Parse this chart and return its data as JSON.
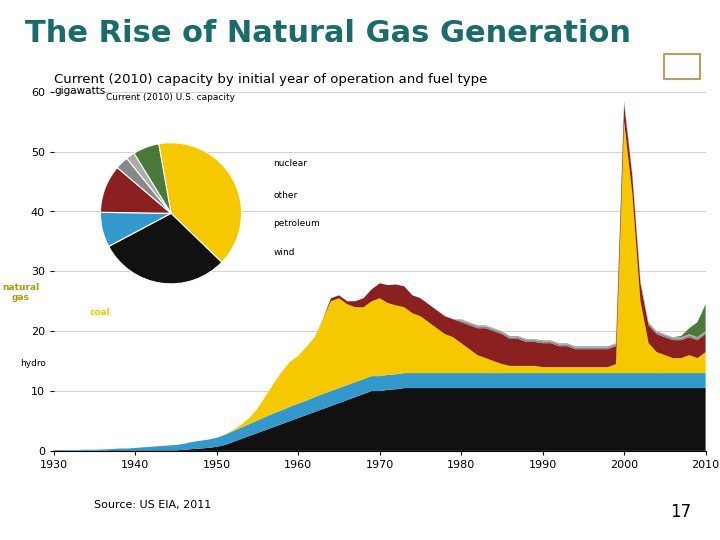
{
  "title": "The Rise of Natural Gas Generation",
  "title_color": "#1a6b6b",
  "title_fontsize": 22,
  "separator_color": "#1a3060",
  "source_text": "Source: US EIA, 2011",
  "page_number": "17",
  "chart_title": "Current (2010) capacity by initial year of operation and fuel type",
  "chart_ylabel": "gigawatts",
  "chart_ylim": [
    0,
    60
  ],
  "chart_yticks": [
    0,
    10,
    20,
    30,
    40,
    50,
    60
  ],
  "chart_xlim": [
    1930,
    2010
  ],
  "chart_xticks": [
    1930,
    1940,
    1950,
    1960,
    1970,
    1980,
    1990,
    2000,
    2010
  ],
  "years": [
    1930,
    1931,
    1932,
    1933,
    1934,
    1935,
    1936,
    1937,
    1938,
    1939,
    1940,
    1941,
    1942,
    1943,
    1944,
    1945,
    1946,
    1947,
    1948,
    1949,
    1950,
    1951,
    1952,
    1953,
    1954,
    1955,
    1956,
    1957,
    1958,
    1959,
    1960,
    1961,
    1962,
    1963,
    1964,
    1965,
    1966,
    1967,
    1968,
    1969,
    1970,
    1971,
    1972,
    1973,
    1974,
    1975,
    1976,
    1977,
    1978,
    1979,
    1980,
    1981,
    1982,
    1983,
    1984,
    1985,
    1986,
    1987,
    1988,
    1989,
    1990,
    1991,
    1992,
    1993,
    1994,
    1995,
    1996,
    1997,
    1998,
    1999,
    2000,
    2001,
    2002,
    2003,
    2004,
    2005,
    2006,
    2007,
    2008,
    2009,
    2010
  ],
  "coal": [
    0.05,
    0.05,
    0.05,
    0.05,
    0.05,
    0.05,
    0.05,
    0.1,
    0.1,
    0.1,
    0.1,
    0.1,
    0.1,
    0.1,
    0.1,
    0.1,
    0.2,
    0.3,
    0.4,
    0.5,
    0.7,
    1.0,
    1.5,
    2.0,
    2.5,
    3.0,
    3.5,
    4.0,
    4.5,
    5.0,
    5.5,
    6.0,
    6.5,
    7.0,
    7.5,
    8.0,
    8.5,
    9.0,
    9.5,
    10.0,
    10.0,
    10.2,
    10.3,
    10.5,
    10.5,
    10.5,
    10.5,
    10.5,
    10.5,
    10.5,
    10.5,
    10.5,
    10.5,
    10.5,
    10.5,
    10.5,
    10.5,
    10.5,
    10.5,
    10.5,
    10.5,
    10.5,
    10.5,
    10.5,
    10.5,
    10.5,
    10.5,
    10.5,
    10.5,
    10.5,
    10.5,
    10.5,
    10.5,
    10.5,
    10.5,
    10.5,
    10.5,
    10.5,
    10.5,
    10.5,
    10.5
  ],
  "coal_color": "#111111",
  "hydro": [
    0.1,
    0.1,
    0.1,
    0.1,
    0.15,
    0.15,
    0.2,
    0.2,
    0.3,
    0.3,
    0.4,
    0.5,
    0.6,
    0.7,
    0.8,
    0.9,
    1.0,
    1.2,
    1.3,
    1.4,
    1.5,
    1.7,
    1.8,
    1.9,
    2.0,
    2.1,
    2.2,
    2.3,
    2.3,
    2.4,
    2.4,
    2.4,
    2.5,
    2.5,
    2.5,
    2.5,
    2.5,
    2.5,
    2.5,
    2.5,
    2.5,
    2.5,
    2.5,
    2.5,
    2.5,
    2.5,
    2.5,
    2.5,
    2.5,
    2.5,
    2.5,
    2.5,
    2.5,
    2.5,
    2.5,
    2.5,
    2.5,
    2.5,
    2.5,
    2.5,
    2.5,
    2.5,
    2.5,
    2.5,
    2.5,
    2.5,
    2.5,
    2.5,
    2.5,
    2.5,
    2.5,
    2.5,
    2.5,
    2.5,
    2.5,
    2.5,
    2.5,
    2.5,
    2.5,
    2.5,
    2.5
  ],
  "hydro_color": "#3399cc",
  "natural_gas": [
    0.0,
    0.0,
    0.0,
    0.0,
    0.0,
    0.0,
    0.0,
    0.0,
    0.0,
    0.0,
    0.0,
    0.0,
    0.0,
    0.0,
    0.0,
    0.0,
    0.0,
    0.0,
    0.0,
    0.0,
    0.0,
    0.0,
    0.2,
    0.5,
    1.0,
    2.0,
    3.5,
    5.0,
    6.5,
    7.5,
    8.0,
    9.0,
    10.0,
    12.5,
    15.0,
    15.0,
    13.5,
    12.5,
    12.0,
    12.5,
    13.0,
    12.0,
    11.5,
    11.0,
    10.0,
    9.5,
    8.5,
    7.5,
    6.5,
    6.0,
    5.0,
    4.0,
    3.0,
    2.5,
    2.0,
    1.5,
    1.2,
    1.2,
    1.2,
    1.2,
    1.0,
    1.0,
    1.0,
    1.0,
    1.0,
    1.0,
    1.0,
    1.0,
    1.0,
    1.5,
    42.0,
    30.0,
    12.0,
    5.0,
    3.5,
    3.0,
    2.5,
    2.5,
    3.0,
    2.5,
    3.5
  ],
  "natural_gas_color": "#f5c800",
  "nuclear": [
    0.0,
    0.0,
    0.0,
    0.0,
    0.0,
    0.0,
    0.0,
    0.0,
    0.0,
    0.0,
    0.0,
    0.0,
    0.0,
    0.0,
    0.0,
    0.0,
    0.0,
    0.0,
    0.0,
    0.0,
    0.0,
    0.0,
    0.0,
    0.0,
    0.0,
    0.0,
    0.0,
    0.0,
    0.0,
    0.0,
    0.0,
    0.0,
    0.0,
    0.0,
    0.5,
    0.5,
    0.5,
    1.0,
    1.5,
    2.0,
    2.5,
    3.0,
    3.5,
    3.5,
    3.0,
    3.0,
    3.0,
    3.0,
    3.0,
    3.0,
    3.5,
    4.0,
    4.5,
    5.0,
    5.0,
    5.0,
    4.5,
    4.5,
    4.0,
    4.0,
    4.0,
    4.0,
    3.5,
    3.5,
    3.0,
    3.0,
    3.0,
    3.0,
    3.0,
    3.0,
    3.0,
    3.0,
    3.0,
    3.0,
    3.0,
    3.0,
    3.0,
    3.0,
    3.0,
    3.0,
    3.0
  ],
  "nuclear_color": "#8b2020",
  "other": [
    0.0,
    0.0,
    0.0,
    0.0,
    0.0,
    0.0,
    0.0,
    0.0,
    0.0,
    0.0,
    0.0,
    0.0,
    0.0,
    0.0,
    0.0,
    0.0,
    0.0,
    0.0,
    0.0,
    0.0,
    0.0,
    0.0,
    0.0,
    0.0,
    0.0,
    0.0,
    0.0,
    0.0,
    0.0,
    0.0,
    0.0,
    0.0,
    0.0,
    0.0,
    0.0,
    0.0,
    0.0,
    0.0,
    0.0,
    0.0,
    0.0,
    0.0,
    0.0,
    0.0,
    0.0,
    0.0,
    0.0,
    0.0,
    0.0,
    0.0,
    0.3,
    0.3,
    0.3,
    0.3,
    0.3,
    0.3,
    0.3,
    0.3,
    0.3,
    0.3,
    0.3,
    0.3,
    0.3,
    0.3,
    0.3,
    0.3,
    0.3,
    0.3,
    0.3,
    0.3,
    0.3,
    0.3,
    0.3,
    0.3,
    0.3,
    0.3,
    0.3,
    0.3,
    0.3,
    0.3,
    0.3
  ],
  "other_color": "#888888",
  "petroleum": [
    0.0,
    0.0,
    0.0,
    0.0,
    0.0,
    0.0,
    0.0,
    0.0,
    0.0,
    0.0,
    0.0,
    0.0,
    0.0,
    0.0,
    0.0,
    0.0,
    0.0,
    0.0,
    0.0,
    0.0,
    0.0,
    0.0,
    0.0,
    0.0,
    0.0,
    0.0,
    0.0,
    0.0,
    0.0,
    0.0,
    0.0,
    0.0,
    0.0,
    0.0,
    0.0,
    0.0,
    0.0,
    0.0,
    0.0,
    0.0,
    0.0,
    0.0,
    0.0,
    0.0,
    0.0,
    0.0,
    0.0,
    0.0,
    0.0,
    0.0,
    0.2,
    0.2,
    0.2,
    0.2,
    0.2,
    0.2,
    0.2,
    0.2,
    0.2,
    0.2,
    0.2,
    0.2,
    0.2,
    0.2,
    0.2,
    0.2,
    0.2,
    0.2,
    0.2,
    0.2,
    0.2,
    0.2,
    0.2,
    0.2,
    0.2,
    0.2,
    0.2,
    0.2,
    0.2,
    0.2,
    0.2
  ],
  "petroleum_color": "#aaaaaa",
  "wind": [
    0.0,
    0.0,
    0.0,
    0.0,
    0.0,
    0.0,
    0.0,
    0.0,
    0.0,
    0.0,
    0.0,
    0.0,
    0.0,
    0.0,
    0.0,
    0.0,
    0.0,
    0.0,
    0.0,
    0.0,
    0.0,
    0.0,
    0.0,
    0.0,
    0.0,
    0.0,
    0.0,
    0.0,
    0.0,
    0.0,
    0.0,
    0.0,
    0.0,
    0.0,
    0.0,
    0.0,
    0.0,
    0.0,
    0.0,
    0.0,
    0.0,
    0.0,
    0.0,
    0.0,
    0.0,
    0.0,
    0.0,
    0.0,
    0.0,
    0.0,
    0.0,
    0.0,
    0.0,
    0.0,
    0.0,
    0.0,
    0.0,
    0.0,
    0.0,
    0.0,
    0.0,
    0.0,
    0.0,
    0.0,
    0.0,
    0.0,
    0.0,
    0.0,
    0.0,
    0.0,
    0.0,
    0.0,
    0.0,
    0.0,
    0.0,
    0.0,
    0.0,
    0.2,
    1.0,
    2.5,
    4.5
  ],
  "wind_color": "#4a7a3a",
  "pie_sizes": [
    40,
    30,
    8,
    11,
    3,
    2,
    6
  ],
  "pie_colors": [
    "#f5c800",
    "#111111",
    "#3399cc",
    "#8b2020",
    "#888888",
    "#aaaaaa",
    "#4a7a3a"
  ],
  "pie_startangle": 100,
  "pie_title": "Current (2010) U.S. capacity",
  "bg_color": "#ffffff",
  "slide_bg": "#ffffff"
}
